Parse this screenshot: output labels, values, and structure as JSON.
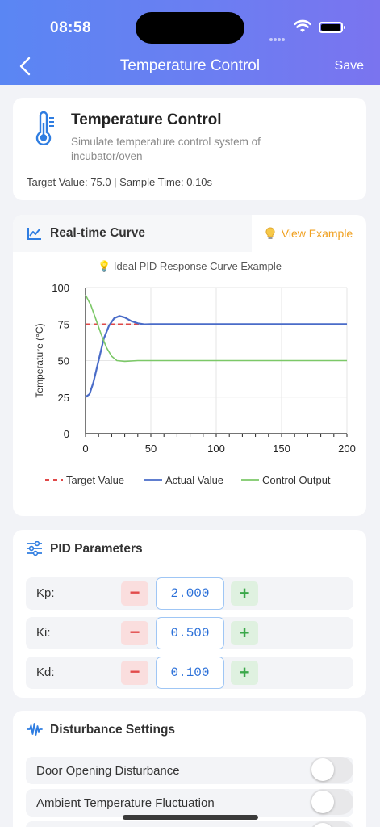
{
  "status_bar": {
    "time": "08:58"
  },
  "nav": {
    "title": "Temperature Control",
    "save_label": "Save"
  },
  "info": {
    "title": "Temperature Control",
    "description": "Simulate temperature control system of incubator/oven",
    "meta": "Target Value: 75.0  |  Sample Time: 0.10s"
  },
  "chart_card": {
    "title": "Real-time Curve",
    "view_example_label": "View Example"
  },
  "chart_data": {
    "type": "line",
    "title": "Ideal PID Response Curve Example",
    "ylabel": "Temperature (°C)",
    "xlabel": "",
    "xlim": [
      0,
      200
    ],
    "ylim": [
      0,
      100
    ],
    "x_ticks": [
      0,
      50,
      100,
      150,
      200
    ],
    "y_ticks": [
      0,
      25,
      50,
      75,
      100
    ],
    "grid": true,
    "legend_position": "bottom",
    "series": [
      {
        "name": "Target Value",
        "color": "#e04848",
        "style": "dashed",
        "points": [
          [
            0,
            75
          ],
          [
            200,
            75
          ]
        ]
      },
      {
        "name": "Actual Value",
        "color": "#4a6cc8",
        "style": "solid",
        "points": [
          [
            0,
            25
          ],
          [
            3,
            27
          ],
          [
            6,
            35
          ],
          [
            10,
            50
          ],
          [
            14,
            65
          ],
          [
            18,
            74
          ],
          [
            22,
            79
          ],
          [
            26,
            80.5
          ],
          [
            30,
            79.5
          ],
          [
            35,
            77
          ],
          [
            40,
            75.5
          ],
          [
            45,
            74.8
          ],
          [
            50,
            75
          ],
          [
            60,
            75
          ],
          [
            80,
            75
          ],
          [
            100,
            75
          ],
          [
            150,
            75
          ],
          [
            200,
            75
          ]
        ]
      },
      {
        "name": "Control Output",
        "color": "#7cc868",
        "style": "solid",
        "points": [
          [
            0,
            95
          ],
          [
            4,
            88
          ],
          [
            8,
            78
          ],
          [
            12,
            68
          ],
          [
            16,
            59
          ],
          [
            20,
            53
          ],
          [
            24,
            50
          ],
          [
            30,
            49.5
          ],
          [
            40,
            50
          ],
          [
            50,
            50
          ],
          [
            100,
            50
          ],
          [
            150,
            50
          ],
          [
            200,
            50
          ]
        ]
      }
    ]
  },
  "pid": {
    "title": "PID Parameters",
    "params": [
      {
        "label": "Kp:",
        "value": "2.000"
      },
      {
        "label": "Ki:",
        "value": "0.500"
      },
      {
        "label": "Kd:",
        "value": "0.100"
      }
    ],
    "minus_symbol": "−",
    "plus_symbol": "+"
  },
  "disturbance": {
    "title": "Disturbance Settings",
    "items": [
      {
        "label": "Door Opening Disturbance",
        "enabled": false
      },
      {
        "label": "Ambient Temperature Fluctuation",
        "enabled": false
      }
    ]
  }
}
